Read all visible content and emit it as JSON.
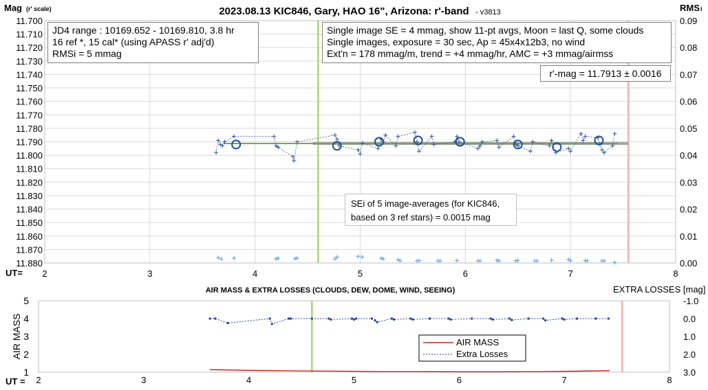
{
  "top_chart": {
    "title": "2023.08.13 KIC846, Gary, HAO 16\", Arizona: r'-band",
    "title_suffix": "- v3813",
    "y_left_label": "Mag",
    "y_left_label_sub": "(r' scale)",
    "y_right_label": "RMS",
    "y_right_label_sub": "i",
    "x_label": "UT=",
    "info_left": [
      "JD4 range : 10169.652 - 10169.810, 3.8  hr",
      "16 ref *, 15 cal* (using APASS r' adj'd)",
      "RMSi = 5 mmag"
    ],
    "info_right": [
      "Single image SE = 4 mmag, show  11-pt avgs, Moon = last Q, some clouds",
      "Single images, exposure = 30 sec, Ap = 45x4x12b3, no wind",
      "Ext'n = 178 mmag/m, trend = +4  mmag/hr, AMC = +3 mmag/airmss"
    ],
    "result": "r'-mag = 11.7913 ± 0.0016",
    "sei_note": [
      "SEi of 5 image-averages (for KIC846,",
      "based on 3 ref stars) = 0.0015 mag"
    ]
  },
  "bottom_chart": {
    "title": "AIR MASS & EXTRA LOSSES (CLOUDS, DEW, DOME, WIND, SEEING)",
    "y_left_label": "AIR MASS",
    "y_right_label": "EXTRA LOSSES [mag]",
    "x_label": "UT =",
    "legend": [
      "AIR MASS",
      "Extra Losses"
    ]
  },
  "colors": {
    "points": "#2f5597",
    "avg_circles": "#1f4e9c",
    "rms": "#5b9bd5",
    "fit_line": "#70ad47",
    "fit_gray": "#a6a6a6",
    "green_vline": "#92d050",
    "pink_vline": "#f4b6b6",
    "airmass": "#c00000",
    "extra_losses": "#1f3fa0",
    "grid": "#d9d9d9"
  },
  "chart_data": [
    {
      "type": "scatter",
      "name": "top",
      "title": "2023.08.13 KIC846, Gary, HAO 16\", Arizona: r'-band",
      "xlabel": "UT",
      "ylabel": "Mag (r' scale)",
      "xlim": [
        2,
        8
      ],
      "ylim": [
        11.88,
        11.7
      ],
      "y2lim": [
        0.0,
        0.09
      ],
      "x_ticks": [
        2,
        3,
        4,
        5,
        6,
        7,
        8
      ],
      "y_ticks": [
        11.7,
        11.71,
        11.72,
        11.73,
        11.74,
        11.75,
        11.76,
        11.77,
        11.78,
        11.79,
        11.8,
        11.81,
        11.82,
        11.83,
        11.84,
        11.85,
        11.86,
        11.87,
        11.88
      ],
      "y2_ticks": [
        0.0,
        0.01,
        0.02,
        0.03,
        0.04,
        0.05,
        0.06,
        0.07,
        0.08,
        0.09
      ],
      "vlines": [
        4.6,
        7.55
      ],
      "fit_level": 11.7913,
      "series": [
        {
          "kind": "single",
          "x": [
            3.63,
            3.65,
            3.67,
            3.69,
            3.71,
            3.8,
            4.18,
            4.2,
            4.22,
            4.36,
            4.37,
            4.4,
            4.76,
            4.78,
            4.8,
            4.98,
            5.0,
            5.02,
            5.17,
            5.2,
            5.22,
            5.24,
            5.34,
            5.36,
            5.52,
            5.54,
            5.56,
            5.68,
            5.7,
            5.9,
            5.92,
            5.94,
            6.12,
            6.14,
            6.16,
            6.3,
            6.32,
            6.46,
            6.48,
            6.5,
            6.62,
            6.64,
            6.8,
            6.82,
            6.86,
            6.98,
            7.0,
            7.1,
            7.12,
            7.14,
            7.26,
            7.28,
            7.3,
            7.32,
            7.4,
            7.42
          ],
          "y": [
            11.798,
            11.789,
            11.792,
            11.793,
            11.79,
            11.786,
            11.786,
            11.793,
            11.794,
            11.801,
            11.804,
            11.79,
            11.785,
            11.788,
            11.793,
            11.796,
            11.799,
            11.791,
            11.795,
            11.788,
            11.79,
            11.785,
            11.793,
            11.786,
            11.783,
            11.79,
            11.797,
            11.786,
            11.792,
            11.79,
            11.786,
            11.79,
            11.795,
            11.793,
            11.79,
            11.789,
            11.794,
            11.786,
            11.792,
            11.793,
            11.797,
            11.79,
            11.793,
            11.789,
            11.798,
            11.795,
            11.797,
            11.784,
            11.789,
            11.786,
            11.787,
            11.792,
            11.796,
            11.798,
            11.793,
            11.784
          ]
        },
        {
          "kind": "averages",
          "x": [
            3.82,
            4.78,
            5.18,
            5.55,
            5.95,
            6.5,
            6.87,
            7.27
          ],
          "y": [
            11.792,
            11.793,
            11.79,
            11.789,
            11.79,
            11.792,
            11.794,
            11.789
          ]
        },
        {
          "kind": "rms",
          "x": [
            3.65,
            3.68,
            3.8,
            4.2,
            4.22,
            4.38,
            4.4,
            4.76,
            4.78,
            4.98,
            5.02,
            5.2,
            5.22,
            5.36,
            5.38,
            5.54,
            5.56,
            5.74,
            5.76,
            5.92,
            6.12,
            6.14,
            6.3,
            6.32,
            6.48,
            6.5,
            6.66,
            6.68,
            6.82,
            6.98,
            7.0,
            7.14,
            7.16,
            7.3,
            7.32,
            7.42
          ],
          "y": [
            0.002,
            0.0015,
            0.0018,
            0.0015,
            0.0018,
            0.0016,
            0.0018,
            0.0015,
            0.0022,
            0.0025,
            0.0022,
            0.0018,
            0.0015,
            0.0012,
            0.0008,
            0.0008,
            0.0009,
            0.0008,
            0.0008,
            0.0009,
            0.0008,
            0.0008,
            0.001,
            0.0008,
            0.0008,
            0.0009,
            0.0008,
            0.0008,
            0.001,
            0.0013,
            0.0008,
            0.0009,
            0.0008,
            0.0008,
            0.0008,
            0.0002
          ]
        }
      ]
    },
    {
      "type": "line",
      "name": "bottom",
      "title": "AIR MASS & EXTRA LOSSES (CLOUDS, DEW, DOME, WIND, SEEING)",
      "xlabel": "UT",
      "ylabel": "AIR MASS",
      "y2label": "EXTRA LOSSES [mag]",
      "xlim": [
        2,
        8
      ],
      "ylim": [
        1,
        5
      ],
      "y2lim": [
        3.0,
        -1.0
      ],
      "x_ticks": [
        2,
        3,
        4,
        5,
        6,
        7,
        8
      ],
      "y_ticks": [
        1,
        2,
        3,
        4,
        5
      ],
      "y2_ticks": [
        "-1.0",
        "0.0",
        "1.0",
        "2.0",
        "3.0"
      ],
      "vlines": [
        4.6,
        7.55
      ],
      "series": [
        {
          "name": "AIR MASS",
          "x": [
            3.63,
            4.0,
            4.5,
            5.0,
            5.2,
            5.6,
            6.0,
            6.4,
            6.8,
            7.2,
            7.43
          ],
          "y": [
            1.14,
            1.1,
            1.07,
            1.05,
            1.03,
            1.03,
            1.02,
            1.02,
            1.03,
            1.06,
            1.08
          ]
        },
        {
          "name": "Extra Losses",
          "x": [
            3.63,
            3.68,
            3.8,
            4.2,
            4.22,
            4.38,
            4.4,
            4.6,
            4.76,
            4.78,
            4.98,
            5.0,
            5.02,
            5.17,
            5.2,
            5.22,
            5.36,
            5.38,
            5.54,
            5.56,
            5.72,
            5.9,
            5.92,
            6.12,
            6.3,
            6.32,
            6.48,
            6.5,
            6.66,
            6.8,
            6.82,
            6.98,
            7.0,
            7.12,
            7.3,
            7.42
          ],
          "y": [
            0.0,
            0.0,
            0.25,
            0.0,
            0.3,
            0.0,
            0.0,
            0.0,
            0.0,
            0.05,
            0.0,
            0.05,
            0.0,
            0.0,
            0.1,
            0.2,
            0.0,
            0.05,
            0.0,
            0.05,
            0.0,
            0.0,
            0.05,
            0.0,
            0.0,
            0.05,
            0.0,
            0.08,
            0.0,
            0.0,
            0.1,
            0.0,
            0.05,
            0.0,
            0.0,
            0.0
          ]
        }
      ]
    }
  ]
}
